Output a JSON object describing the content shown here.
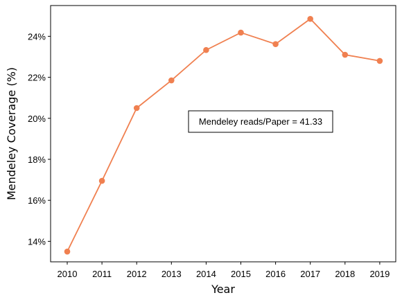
{
  "chart_data": {
    "type": "line",
    "title": "",
    "xlabel": "Year",
    "ylabel": "Mendeley Coverage (%)",
    "x": [
      2010,
      2011,
      2012,
      2013,
      2014,
      2015,
      2016,
      2017,
      2018,
      2019
    ],
    "series": [
      {
        "values": [
          13.5,
          16.95,
          20.5,
          21.85,
          23.33,
          24.18,
          23.62,
          24.85,
          23.1,
          22.8
        ]
      }
    ],
    "ylim": [
      13.0,
      25.5
    ],
    "yticks": [
      14,
      16,
      18,
      20,
      22,
      24
    ],
    "ytick_labels": [
      "14%",
      "16%",
      "18%",
      "20%",
      "22%",
      "24%"
    ],
    "annotation": "Mendeley reads/Paper = 41.33",
    "line_color": "#f08050",
    "grid": false,
    "legend": "none"
  }
}
